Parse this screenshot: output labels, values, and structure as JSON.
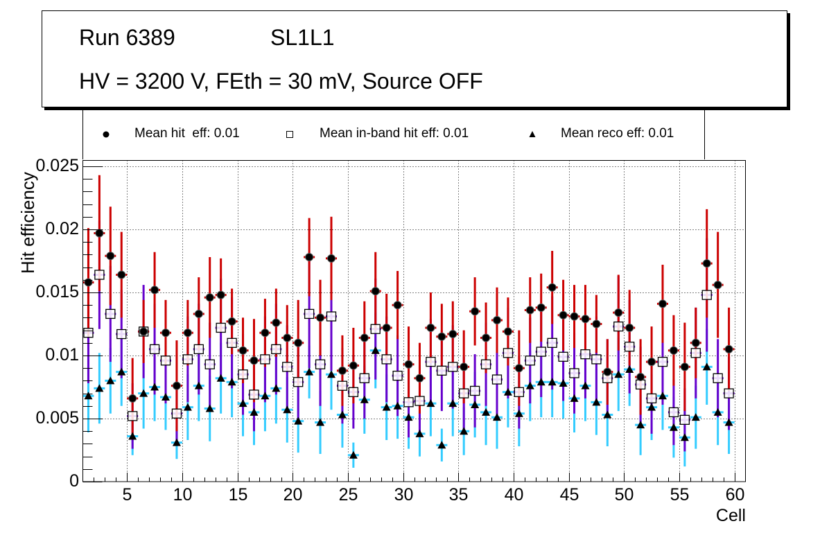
{
  "title": {
    "run": "Run 6389",
    "layer": "SL1L1",
    "conditions": "HV = 3200 V, FEth = 30 mV, Source OFF"
  },
  "legend": [
    {
      "marker": "filled-circle",
      "label": "Mean hit  eff: 0.01"
    },
    {
      "marker": "open-square",
      "label": "Mean in-band hit eff: 0.01"
    },
    {
      "marker": "filled-triangle",
      "label": "Mean reco eff: 0.01"
    }
  ],
  "chart_data": {
    "type": "scatter",
    "title": "Run 6389 SL1L1 — HV = 3200 V, FEth = 30 mV, Source OFF",
    "xlabel": "Cell",
    "ylabel": "Hit efficiency",
    "xlim": [
      1,
      61
    ],
    "ylim": [
      0,
      0.0255
    ],
    "x_ticks": [
      5,
      10,
      15,
      20,
      25,
      30,
      35,
      40,
      45,
      50,
      55,
      60
    ],
    "x_tick_labels": [
      "5",
      "10",
      "15",
      "20",
      "25",
      "30",
      "35",
      "40",
      "45",
      "50",
      "55",
      "60"
    ],
    "y_ticks": [
      0,
      0.005,
      0.01,
      0.015,
      0.02,
      0.025
    ],
    "y_tick_labels": [
      "0",
      "0.005",
      "0.01",
      "0.015",
      "0.02",
      "0.025"
    ],
    "grid": true,
    "legend_position": "top",
    "x": [
      1.5,
      2.5,
      3.5,
      4.5,
      5.5,
      6.5,
      7.5,
      8.5,
      9.5,
      10.5,
      11.5,
      12.5,
      13.5,
      14.5,
      15.5,
      16.5,
      17.5,
      18.5,
      19.5,
      20.5,
      21.5,
      22.5,
      23.5,
      24.5,
      25.5,
      26.5,
      27.5,
      28.5,
      29.5,
      30.5,
      31.5,
      32.5,
      33.5,
      34.5,
      35.5,
      36.5,
      37.5,
      38.5,
      39.5,
      40.5,
      41.5,
      42.5,
      43.5,
      44.5,
      45.5,
      46.5,
      47.5,
      48.5,
      49.5,
      50.5,
      51.5,
      52.5,
      53.5,
      54.5,
      55.5,
      56.5,
      57.5,
      58.5,
      59.5
    ],
    "series": [
      {
        "name": "Mean hit  eff: 0.01",
        "marker": "filled-circle",
        "color": "#cc0000",
        "values": [
          0.0158,
          0.0197,
          0.0179,
          0.0164,
          0.0066,
          0.0119,
          0.0152,
          0.0118,
          0.0076,
          0.0118,
          0.0133,
          0.0146,
          0.0148,
          0.0127,
          0.0104,
          0.0096,
          0.0118,
          0.0126,
          0.0114,
          0.011,
          0.0178,
          0.013,
          0.0177,
          0.0088,
          0.0092,
          0.0114,
          0.0151,
          0.0122,
          0.014,
          0.0093,
          0.0082,
          0.0122,
          0.0115,
          0.0117,
          0.0091,
          0.0135,
          0.0114,
          0.0128,
          0.0119,
          0.009,
          0.0136,
          0.0138,
          0.0154,
          0.0132,
          0.0131,
          0.0129,
          0.0125,
          0.0087,
          0.0134,
          0.0122,
          0.0083,
          0.0095,
          0.0141,
          0.0104,
          0.0091,
          0.011,
          0.0173,
          0.0156,
          0.0105
        ],
        "errors": [
          0.0043,
          0.0046,
          0.0039,
          0.0034,
          0.0032,
          0.0025,
          0.003,
          0.0026,
          0.0036,
          0.0026,
          0.0029,
          0.0032,
          0.0029,
          0.0026,
          0.0026,
          0.0033,
          0.0027,
          0.0027,
          0.0026,
          0.0034,
          0.0031,
          0.003,
          0.0033,
          0.0028,
          0.003,
          0.0029,
          0.0031,
          0.0027,
          0.0027,
          0.003,
          0.0028,
          0.0028,
          0.0026,
          0.0026,
          0.0029,
          0.0027,
          0.0028,
          0.0026,
          0.0027,
          0.003,
          0.0026,
          0.0027,
          0.0029,
          0.0028,
          0.0025,
          0.0027,
          0.0023,
          0.0026,
          0.003,
          0.003,
          0.003,
          0.0028,
          0.0031,
          0.0028,
          0.0035,
          0.0028,
          0.0043,
          0.0042,
          0.0033
        ]
      },
      {
        "name": "Mean in-band hit eff: 0.01",
        "marker": "open-square",
        "color": "#6600cc",
        "values": [
          0.0118,
          0.0164,
          0.0133,
          0.0117,
          0.0052,
          0.0119,
          0.0105,
          0.0096,
          0.0054,
          0.0097,
          0.0105,
          0.0093,
          0.0122,
          0.011,
          0.0085,
          0.0069,
          0.0097,
          0.0105,
          0.0091,
          0.0079,
          0.0133,
          0.0093,
          0.0131,
          0.0076,
          0.0071,
          0.0082,
          0.0121,
          0.0097,
          0.0084,
          0.0063,
          0.0064,
          0.0095,
          0.0088,
          0.0091,
          0.007,
          0.0072,
          0.0093,
          0.0081,
          0.0102,
          0.0071,
          0.0096,
          0.0103,
          0.011,
          0.0099,
          0.0086,
          0.0101,
          0.0097,
          0.0082,
          0.0123,
          0.0107,
          0.0077,
          0.0066,
          0.0095,
          0.0055,
          0.0049,
          0.0102,
          0.0148,
          0.0082,
          0.007
        ],
        "errors": [
          0.004,
          0.0043,
          0.0038,
          0.0035,
          0.0026,
          0.0037,
          0.0036,
          0.0034,
          0.0025,
          0.0034,
          0.0036,
          0.0033,
          0.0039,
          0.0036,
          0.0032,
          0.0029,
          0.0034,
          0.0036,
          0.0033,
          0.0031,
          0.0043,
          0.0033,
          0.0043,
          0.003,
          0.0029,
          0.0032,
          0.004,
          0.0034,
          0.0032,
          0.0028,
          0.0028,
          0.0034,
          0.0032,
          0.0033,
          0.0029,
          0.0029,
          0.0033,
          0.0031,
          0.0036,
          0.0029,
          0.0034,
          0.0036,
          0.0037,
          0.0035,
          0.0032,
          0.0035,
          0.0034,
          0.0031,
          0.004,
          0.0037,
          0.003,
          0.0028,
          0.0034,
          0.0026,
          0.0025,
          0.0036,
          0.0045,
          0.0031,
          0.0029
        ]
      },
      {
        "name": "Mean reco eff: 0.01",
        "marker": "filled-triangle",
        "color": "#33ccff",
        "values": [
          0.0068,
          0.0074,
          0.008,
          0.0087,
          0.0036,
          0.007,
          0.0075,
          0.0067,
          0.0031,
          0.0059,
          0.0076,
          0.0058,
          0.0082,
          0.0079,
          0.0062,
          0.0055,
          0.0068,
          0.0074,
          0.0057,
          0.0048,
          0.0087,
          0.0047,
          0.0085,
          0.0053,
          0.0021,
          0.0065,
          0.0104,
          0.0059,
          0.006,
          0.0051,
          0.0038,
          0.0062,
          0.0029,
          0.0062,
          0.004,
          0.0061,
          0.0055,
          0.0051,
          0.0071,
          0.0054,
          0.0076,
          0.0079,
          0.0079,
          0.0078,
          0.0066,
          0.0076,
          0.0063,
          0.0053,
          0.0085,
          0.0089,
          0.0045,
          0.0059,
          0.0068,
          0.0043,
          0.0035,
          0.0051,
          0.0091,
          0.0055,
          0.0047
        ],
        "errors": [
          0.0029,
          0.0028,
          0.0026,
          0.0027,
          0.0015,
          0.0028,
          0.0027,
          0.0026,
          0.0013,
          0.0026,
          0.0028,
          0.0026,
          0.0028,
          0.0028,
          0.0026,
          0.0026,
          0.0028,
          0.0028,
          0.0026,
          0.0025,
          0.0021,
          0.0025,
          0.0028,
          0.0026,
          0.001,
          0.0027,
          0.003,
          0.0026,
          0.0026,
          0.0025,
          0.0018,
          0.0026,
          0.0013,
          0.0026,
          0.0019,
          0.0026,
          0.0026,
          0.0025,
          0.0028,
          0.0026,
          0.0028,
          0.0028,
          0.0028,
          0.0028,
          0.0027,
          0.0028,
          0.0026,
          0.0025,
          0.0029,
          0.0029,
          0.0024,
          0.0026,
          0.0027,
          0.0024,
          0.0023,
          0.0025,
          0.003,
          0.0026,
          0.0025
        ]
      }
    ]
  }
}
